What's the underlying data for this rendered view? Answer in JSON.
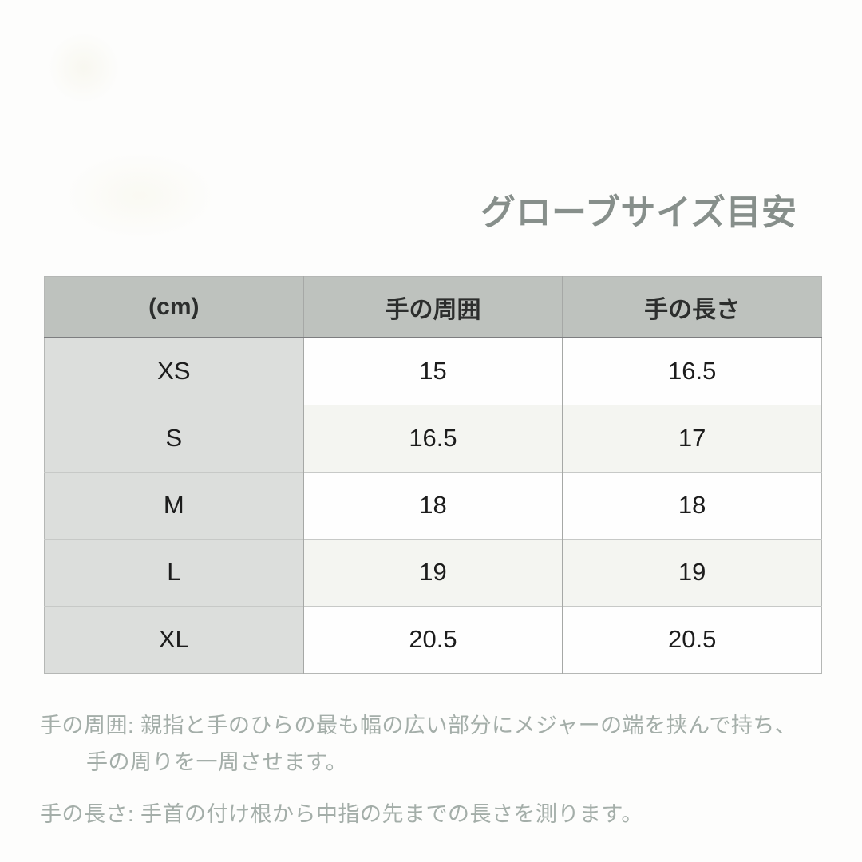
{
  "chart_data": {
    "type": "table",
    "title": "グローブサイズ目安",
    "unit": "cm",
    "columns": [
      "(cm)",
      "手の周囲",
      "手の長さ"
    ],
    "rows": [
      [
        "XS",
        "15",
        "16.5"
      ],
      [
        "S",
        "16.5",
        "17"
      ],
      [
        "M",
        "18",
        "18"
      ],
      [
        "L",
        "19",
        "19"
      ],
      [
        "XL",
        "20.5",
        "20.5"
      ]
    ],
    "notes": [
      "手の周囲: 親指と手のひらの最も幅の広い部分にメジャーの端を挟んで持ち、手の周りを一周させます。",
      "手の長さ: 手首の付け根から中指の先までの長さを測ります。"
    ]
  },
  "notes": [
    {
      "label": "手の周囲:",
      "lines": [
        "親指と手のひらの最も幅の広い部分にメジャーの端を挟んで持ち、",
        "手の周りを一周させます。"
      ]
    },
    {
      "label": "手の長さ:",
      "lines": [
        "手首の付け根から中指の先までの長さを測ります。"
      ]
    }
  ],
  "colors": {
    "title": "#878f8b",
    "note_text": "#a4aea9",
    "header_bg": "#bec2be",
    "size_col_bg": "#dcdedc",
    "row_alt_bg": "#f4f5f1",
    "cell_text": "#1c1c1c"
  }
}
